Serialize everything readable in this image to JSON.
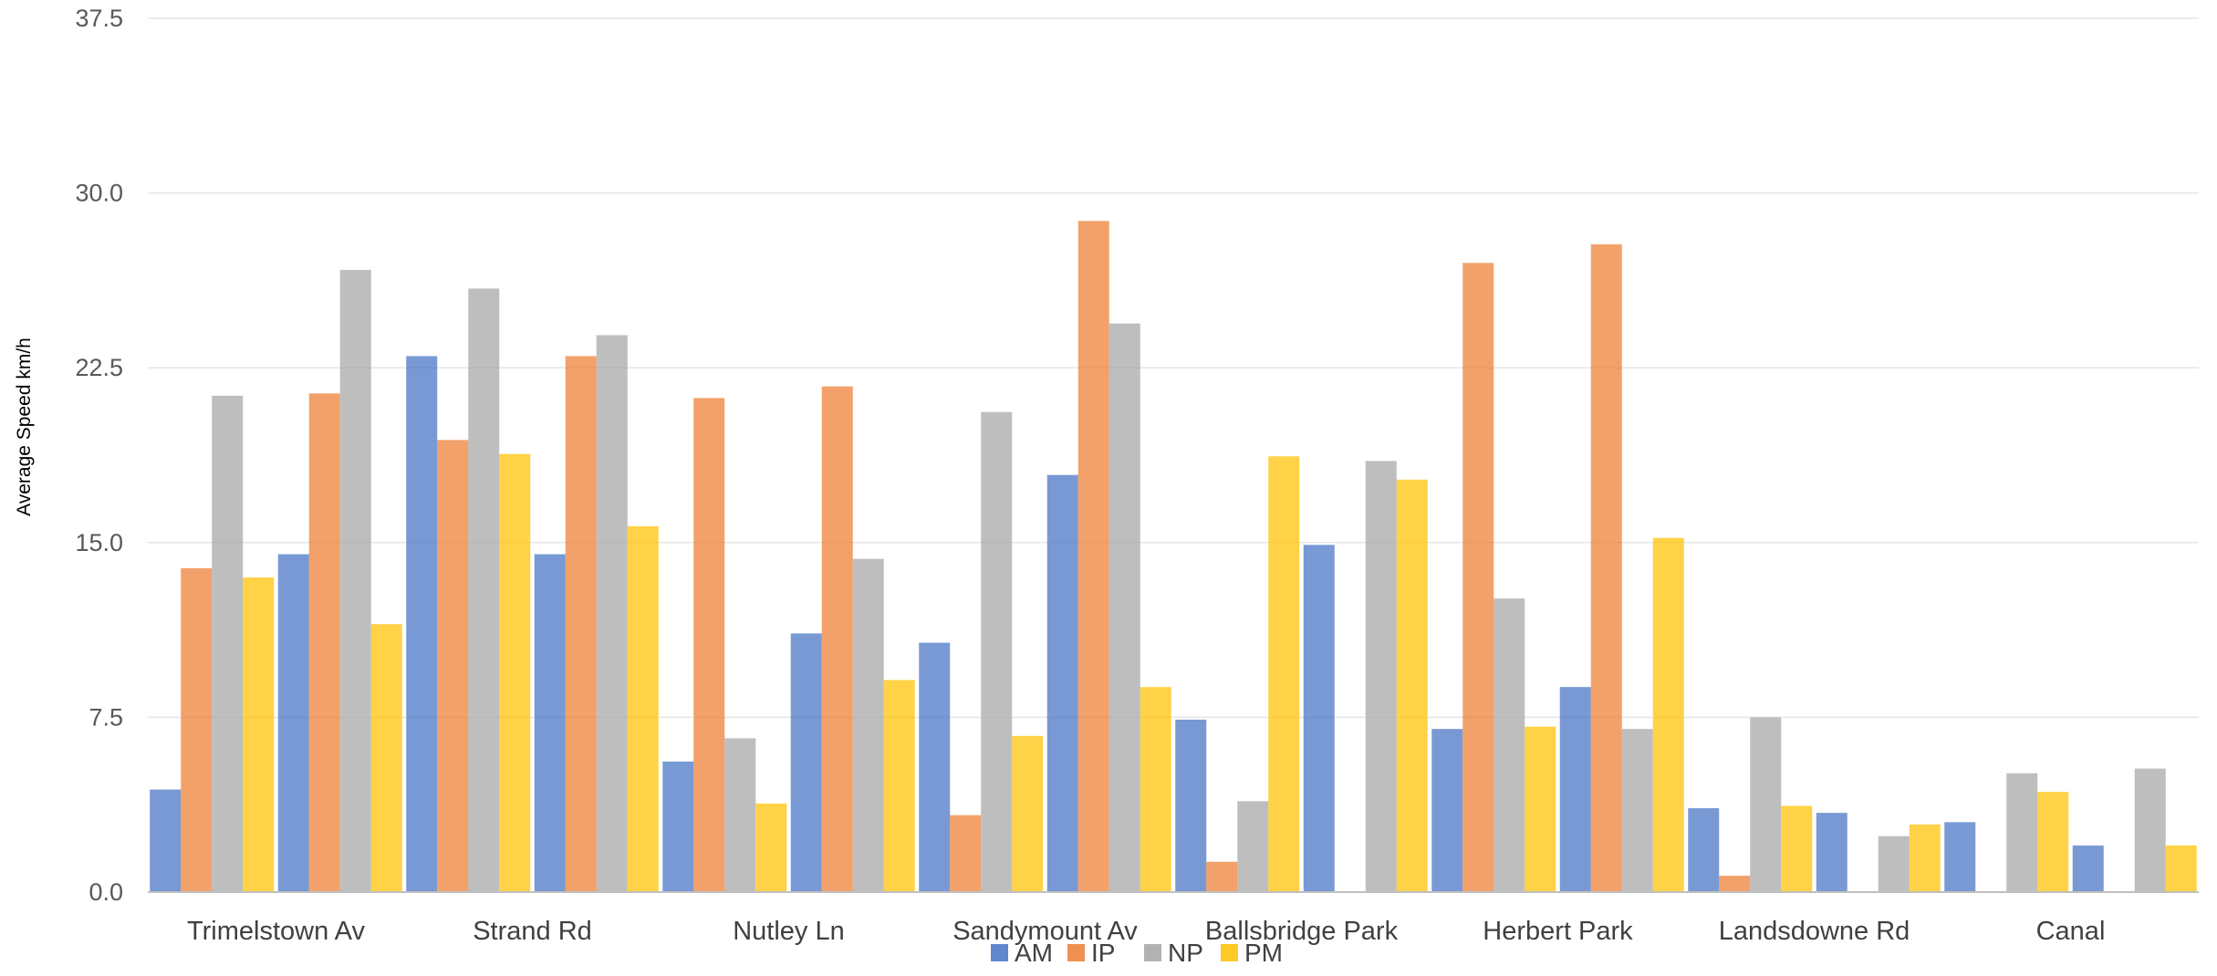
{
  "chart_data": {
    "type": "bar",
    "title": "",
    "xlabel": "",
    "ylabel": "Average Speed km/h",
    "ylim": [
      0,
      37.5
    ],
    "yticks": [
      "0.0",
      "7.5",
      "15.0",
      "22.5",
      "30.0",
      "37.5"
    ],
    "grid": true,
    "legend_position": "bottom",
    "category_labels_shown": [
      "Trimelstown Av",
      "Strand Rd",
      "Nutley Ln",
      "Sandymount Av",
      "Ballsbridge Park",
      "Herbert Park",
      "Landsdowne Rd",
      "Canal"
    ],
    "groups": 16,
    "series": [
      {
        "name": "AM",
        "color": "#4472C4",
        "values": [
          4.4,
          14.5,
          23.0,
          14.5,
          5.6,
          11.1,
          10.7,
          17.9,
          7.4,
          14.9,
          7.0,
          8.8,
          3.6,
          3.4,
          3.0,
          2.0
        ]
      },
      {
        "name": "IP",
        "color": "#ED7D31",
        "values": [
          13.9,
          21.4,
          19.4,
          23.0,
          21.2,
          21.7,
          3.3,
          28.8,
          1.3,
          0,
          27.0,
          27.8,
          0.7,
          0,
          0,
          0
        ]
      },
      {
        "name": "NP",
        "color": "#A5A5A5",
        "values": [
          21.3,
          26.7,
          25.9,
          23.9,
          6.6,
          14.3,
          20.6,
          24.4,
          3.9,
          18.5,
          12.6,
          7.0,
          7.5,
          2.4,
          5.1,
          5.3
        ]
      },
      {
        "name": "PM",
        "color": "#FFC000",
        "values": [
          13.5,
          11.5,
          18.8,
          15.7,
          3.8,
          9.1,
          6.7,
          8.8,
          18.7,
          17.7,
          7.1,
          15.2,
          3.7,
          2.9,
          4.3,
          2.0
        ]
      }
    ]
  }
}
